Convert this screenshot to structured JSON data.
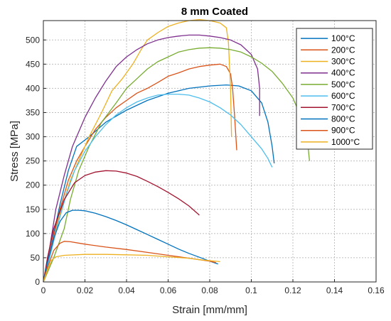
{
  "chart_data": {
    "type": "line",
    "title": "8 mm Coated",
    "xlabel": "Strain [mm/mm]",
    "ylabel": "Stress [MPa]",
    "xlim": [
      0,
      0.16
    ],
    "ylim": [
      0,
      540
    ],
    "xticks": [
      "0",
      "0.02",
      "0.04",
      "0.06",
      "0.08",
      "0.1",
      "0.12",
      "0.14",
      "0.16"
    ],
    "yticks": [
      "0",
      "50",
      "100",
      "150",
      "200",
      "250",
      "300",
      "350",
      "400",
      "450",
      "500"
    ],
    "grid": true,
    "legend_position": "top-right",
    "series": [
      {
        "name": "100°C",
        "color": "#0072BD",
        "points": [
          [
            0,
            0
          ],
          [
            0.003,
            60
          ],
          [
            0.008,
            160
          ],
          [
            0.012,
            230
          ],
          [
            0.016,
            280
          ],
          [
            0.019,
            290
          ],
          [
            0.022,
            300
          ],
          [
            0.03,
            330
          ],
          [
            0.04,
            355
          ],
          [
            0.05,
            375
          ],
          [
            0.06,
            390
          ],
          [
            0.07,
            400
          ],
          [
            0.08,
            405
          ],
          [
            0.088,
            407
          ],
          [
            0.094,
            405
          ],
          [
            0.1,
            395
          ],
          [
            0.105,
            370
          ],
          [
            0.108,
            330
          ],
          [
            0.11,
            280
          ],
          [
            0.111,
            245
          ]
        ]
      },
      {
        "name": "200°C",
        "color": "#D95319",
        "points": [
          [
            0,
            0
          ],
          [
            0.003,
            60
          ],
          [
            0.008,
            150
          ],
          [
            0.012,
            210
          ],
          [
            0.016,
            250
          ],
          [
            0.02,
            280
          ],
          [
            0.025,
            315
          ],
          [
            0.03,
            340
          ],
          [
            0.035,
            360
          ],
          [
            0.04,
            375
          ],
          [
            0.045,
            390
          ],
          [
            0.05,
            400
          ],
          [
            0.055,
            412
          ],
          [
            0.06,
            425
          ],
          [
            0.065,
            432
          ],
          [
            0.07,
            440
          ],
          [
            0.075,
            445
          ],
          [
            0.08,
            448
          ],
          [
            0.085,
            450
          ],
          [
            0.088,
            445
          ],
          [
            0.09,
            430
          ],
          [
            0.091,
            400
          ],
          [
            0.092,
            340
          ],
          [
            0.093,
            272
          ]
        ]
      },
      {
        "name": "300°C",
        "color": "#EDB120",
        "points": [
          [
            0,
            0
          ],
          [
            0.004,
            70
          ],
          [
            0.008,
            140
          ],
          [
            0.013,
            210
          ],
          [
            0.018,
            260
          ],
          [
            0.022,
            300
          ],
          [
            0.028,
            350
          ],
          [
            0.033,
            395
          ],
          [
            0.038,
            420
          ],
          [
            0.043,
            450
          ],
          [
            0.047,
            480
          ],
          [
            0.05,
            500
          ],
          [
            0.055,
            515
          ],
          [
            0.06,
            528
          ],
          [
            0.065,
            535
          ],
          [
            0.07,
            540
          ],
          [
            0.075,
            542
          ],
          [
            0.08,
            540
          ],
          [
            0.085,
            535
          ],
          [
            0.088,
            525
          ],
          [
            0.089,
            495
          ],
          [
            0.09,
            400
          ],
          [
            0.0905,
            300
          ]
        ]
      },
      {
        "name": "400°C",
        "color": "#7E2F8E",
        "points": [
          [
            0,
            0
          ],
          [
            0.003,
            70
          ],
          [
            0.006,
            150
          ],
          [
            0.01,
            220
          ],
          [
            0.014,
            280
          ],
          [
            0.02,
            340
          ],
          [
            0.025,
            380
          ],
          [
            0.03,
            415
          ],
          [
            0.035,
            445
          ],
          [
            0.04,
            465
          ],
          [
            0.045,
            480
          ],
          [
            0.05,
            492
          ],
          [
            0.055,
            500
          ],
          [
            0.06,
            505
          ],
          [
            0.065,
            508
          ],
          [
            0.07,
            510
          ],
          [
            0.075,
            510
          ],
          [
            0.08,
            508
          ],
          [
            0.085,
            505
          ],
          [
            0.09,
            500
          ],
          [
            0.095,
            490
          ],
          [
            0.1,
            470
          ],
          [
            0.103,
            440
          ],
          [
            0.104,
            400
          ],
          [
            0.104,
            343
          ]
        ]
      },
      {
        "name": "500°C",
        "color": "#77AC30",
        "points": [
          [
            0,
            0
          ],
          [
            0.005,
            50
          ],
          [
            0.01,
            110
          ],
          [
            0.013,
            170
          ],
          [
            0.017,
            230
          ],
          [
            0.022,
            280
          ],
          [
            0.028,
            330
          ],
          [
            0.035,
            370
          ],
          [
            0.04,
            400
          ],
          [
            0.045,
            420
          ],
          [
            0.05,
            440
          ],
          [
            0.055,
            455
          ],
          [
            0.06,
            465
          ],
          [
            0.065,
            475
          ],
          [
            0.07,
            480
          ],
          [
            0.075,
            483
          ],
          [
            0.08,
            484
          ],
          [
            0.085,
            483
          ],
          [
            0.09,
            480
          ],
          [
            0.095,
            475
          ],
          [
            0.1,
            465
          ],
          [
            0.105,
            452
          ],
          [
            0.11,
            435
          ],
          [
            0.115,
            410
          ],
          [
            0.12,
            380
          ],
          [
            0.124,
            340
          ],
          [
            0.127,
            290
          ],
          [
            0.128,
            250
          ]
        ]
      },
      {
        "name": "600°C",
        "color": "#4DBEEE",
        "points": [
          [
            0,
            0
          ],
          [
            0.003,
            50
          ],
          [
            0.007,
            120
          ],
          [
            0.011,
            180
          ],
          [
            0.015,
            230
          ],
          [
            0.02,
            270
          ],
          [
            0.025,
            300
          ],
          [
            0.03,
            325
          ],
          [
            0.035,
            345
          ],
          [
            0.04,
            360
          ],
          [
            0.045,
            372
          ],
          [
            0.05,
            380
          ],
          [
            0.055,
            386
          ],
          [
            0.06,
            388
          ],
          [
            0.065,
            388
          ],
          [
            0.07,
            386
          ],
          [
            0.075,
            380
          ],
          [
            0.08,
            372
          ],
          [
            0.085,
            360
          ],
          [
            0.09,
            345
          ],
          [
            0.095,
            325
          ],
          [
            0.1,
            300
          ],
          [
            0.105,
            275
          ],
          [
            0.108,
            255
          ],
          [
            0.11,
            237
          ]
        ]
      },
      {
        "name": "700°C",
        "color": "#A2142F",
        "points": [
          [
            0,
            0
          ],
          [
            0.002,
            50
          ],
          [
            0.005,
            110
          ],
          [
            0.01,
            170
          ],
          [
            0.015,
            205
          ],
          [
            0.02,
            220
          ],
          [
            0.025,
            227
          ],
          [
            0.03,
            230
          ],
          [
            0.035,
            229
          ],
          [
            0.04,
            225
          ],
          [
            0.045,
            218
          ],
          [
            0.05,
            208
          ],
          [
            0.055,
            197
          ],
          [
            0.06,
            185
          ],
          [
            0.065,
            172
          ],
          [
            0.07,
            157
          ],
          [
            0.074,
            142
          ],
          [
            0.075,
            138
          ]
        ]
      },
      {
        "name": "800°C",
        "color": "#0072BD",
        "points": [
          [
            0,
            0
          ],
          [
            0.002,
            40
          ],
          [
            0.005,
            90
          ],
          [
            0.008,
            125
          ],
          [
            0.011,
            143
          ],
          [
            0.014,
            148
          ],
          [
            0.017,
            148
          ],
          [
            0.02,
            147
          ],
          [
            0.025,
            142
          ],
          [
            0.03,
            135
          ],
          [
            0.035,
            127
          ],
          [
            0.04,
            118
          ],
          [
            0.045,
            108
          ],
          [
            0.05,
            98
          ],
          [
            0.055,
            88
          ],
          [
            0.06,
            78
          ],
          [
            0.065,
            68
          ],
          [
            0.07,
            59
          ],
          [
            0.075,
            51
          ],
          [
            0.08,
            43
          ],
          [
            0.084,
            37
          ]
        ]
      },
      {
        "name": "900°C",
        "color": "#D95319",
        "points": [
          [
            0,
            0
          ],
          [
            0.002,
            30
          ],
          [
            0.005,
            65
          ],
          [
            0.008,
            80
          ],
          [
            0.01,
            84
          ],
          [
            0.013,
            83
          ],
          [
            0.02,
            78
          ],
          [
            0.03,
            72
          ],
          [
            0.04,
            67
          ],
          [
            0.05,
            61
          ],
          [
            0.06,
            55
          ],
          [
            0.07,
            49
          ],
          [
            0.08,
            43
          ],
          [
            0.083,
            40
          ]
        ]
      },
      {
        "name": "1000°C",
        "color": "#EDB120",
        "points": [
          [
            0,
            0
          ],
          [
            0.002,
            25
          ],
          [
            0.004,
            45
          ],
          [
            0.006,
            52
          ],
          [
            0.01,
            55
          ],
          [
            0.02,
            57
          ],
          [
            0.03,
            57
          ],
          [
            0.04,
            56
          ],
          [
            0.05,
            55
          ],
          [
            0.06,
            52
          ],
          [
            0.07,
            49
          ],
          [
            0.075,
            46
          ],
          [
            0.08,
            44
          ],
          [
            0.085,
            42
          ]
        ]
      }
    ]
  }
}
